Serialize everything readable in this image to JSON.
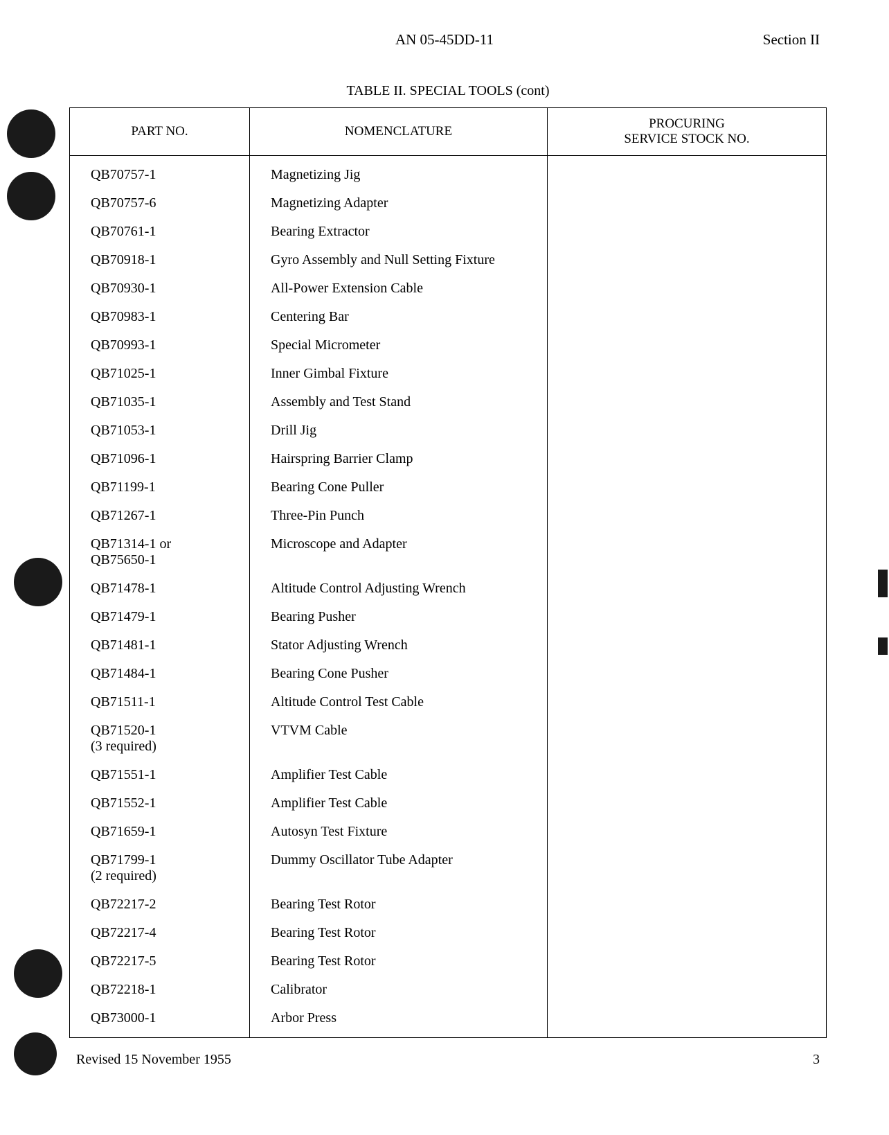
{
  "header": {
    "doc_number": "AN 05-45DD-11",
    "section": "Section II"
  },
  "table": {
    "title": "TABLE II.  SPECIAL TOOLS (cont)",
    "columns": {
      "part_no": "PART NO.",
      "nomenclature": "NOMENCLATURE",
      "procuring": "PROCURING",
      "procuring_sub": "SERVICE STOCK NO."
    },
    "rows": [
      {
        "part_no": "QB70757-1",
        "part_sub": "",
        "nomenclature": "Magnetizing Jig",
        "stock": ""
      },
      {
        "part_no": "QB70757-6",
        "part_sub": "",
        "nomenclature": "Magnetizing Adapter",
        "stock": ""
      },
      {
        "part_no": "QB70761-1",
        "part_sub": "",
        "nomenclature": "Bearing Extractor",
        "stock": ""
      },
      {
        "part_no": "QB70918-1",
        "part_sub": "",
        "nomenclature": "Gyro Assembly and Null Setting Fixture",
        "stock": ""
      },
      {
        "part_no": "QB70930-1",
        "part_sub": "",
        "nomenclature": "All-Power Extension Cable",
        "stock": ""
      },
      {
        "part_no": "QB70983-1",
        "part_sub": "",
        "nomenclature": "Centering Bar",
        "stock": ""
      },
      {
        "part_no": "QB70993-1",
        "part_sub": "",
        "nomenclature": "Special Micrometer",
        "stock": ""
      },
      {
        "part_no": "QB71025-1",
        "part_sub": "",
        "nomenclature": "Inner Gimbal Fixture",
        "stock": ""
      },
      {
        "part_no": "QB71035-1",
        "part_sub": "",
        "nomenclature": "Assembly and Test Stand",
        "stock": ""
      },
      {
        "part_no": "QB71053-1",
        "part_sub": "",
        "nomenclature": "Drill Jig",
        "stock": ""
      },
      {
        "part_no": "QB71096-1",
        "part_sub": "",
        "nomenclature": "Hairspring Barrier Clamp",
        "stock": ""
      },
      {
        "part_no": "QB71199-1",
        "part_sub": "",
        "nomenclature": "Bearing Cone Puller",
        "stock": ""
      },
      {
        "part_no": "QB71267-1",
        "part_sub": "",
        "nomenclature": "Three-Pin Punch",
        "stock": ""
      },
      {
        "part_no": "QB71314-1 or",
        "part_sub": "QB75650-1",
        "nomenclature": "Microscope and Adapter",
        "stock": ""
      },
      {
        "part_no": "QB71478-1",
        "part_sub": "",
        "nomenclature": "Altitude Control Adjusting Wrench",
        "stock": ""
      },
      {
        "part_no": "QB71479-1",
        "part_sub": "",
        "nomenclature": "Bearing Pusher",
        "stock": ""
      },
      {
        "part_no": "QB71481-1",
        "part_sub": "",
        "nomenclature": "Stator Adjusting Wrench",
        "stock": ""
      },
      {
        "part_no": "QB71484-1",
        "part_sub": "",
        "nomenclature": "Bearing Cone Pusher",
        "stock": ""
      },
      {
        "part_no": "QB71511-1",
        "part_sub": "",
        "nomenclature": "Altitude Control Test Cable",
        "stock": ""
      },
      {
        "part_no": "QB71520-1",
        "part_sub": "(3 required)",
        "nomenclature": "VTVM Cable",
        "stock": ""
      },
      {
        "part_no": "QB71551-1",
        "part_sub": "",
        "nomenclature": "Amplifier Test Cable",
        "stock": ""
      },
      {
        "part_no": "QB71552-1",
        "part_sub": "",
        "nomenclature": "Amplifier Test Cable",
        "stock": ""
      },
      {
        "part_no": "QB71659-1",
        "part_sub": "",
        "nomenclature": "Autosyn Test Fixture",
        "stock": ""
      },
      {
        "part_no": "QB71799-1",
        "part_sub": "(2 required)",
        "nomenclature": "Dummy Oscillator Tube Adapter",
        "stock": ""
      },
      {
        "part_no": "QB72217-2",
        "part_sub": "",
        "nomenclature": "Bearing Test Rotor",
        "stock": ""
      },
      {
        "part_no": "QB72217-4",
        "part_sub": "",
        "nomenclature": "Bearing Test Rotor",
        "stock": ""
      },
      {
        "part_no": "QB72217-5",
        "part_sub": "",
        "nomenclature": "Bearing Test Rotor",
        "stock": ""
      },
      {
        "part_no": "QB72218-1",
        "part_sub": "",
        "nomenclature": "Calibrator",
        "stock": ""
      },
      {
        "part_no": "QB73000-1",
        "part_sub": "",
        "nomenclature": "Arbor Press",
        "stock": ""
      }
    ]
  },
  "footer": {
    "revised": "Revised 15 November 1955",
    "page_number": "3"
  }
}
